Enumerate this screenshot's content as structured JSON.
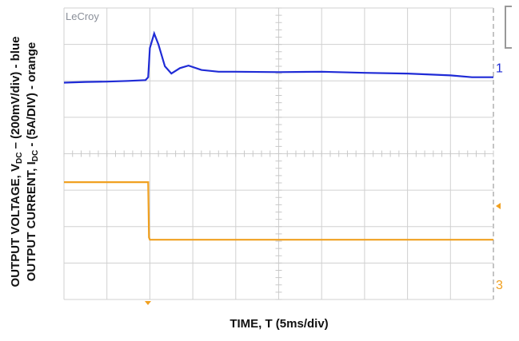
{
  "chart_data": {
    "type": "line",
    "brand": "LeCroy",
    "y_label": [
      [
        "OUTPUT VOLTAGE, V",
        "DC",
        " – (200mV/div) - blue"
      ],
      [
        "OUTPUT CURRENT, I",
        "DC",
        " - (5A/DIV) - orange"
      ]
    ],
    "x_label": "TIME, T (5ms/div)",
    "xlim": [
      0,
      10
    ],
    "ylim": [
      0,
      8
    ],
    "series": [
      {
        "name": "1",
        "color": "#1f2bd6",
        "x": [
          0,
          0.5,
          1,
          1.5,
          1.9,
          1.96,
          2.0,
          2.1,
          2.2,
          2.35,
          2.5,
          2.7,
          2.9,
          3.2,
          3.6,
          4,
          5,
          6,
          7,
          8,
          9,
          9.5,
          10
        ],
        "values": [
          5.95,
          5.97,
          5.98,
          6.0,
          6.02,
          6.1,
          6.9,
          7.3,
          7.0,
          6.4,
          6.2,
          6.35,
          6.42,
          6.3,
          6.25,
          6.25,
          6.24,
          6.25,
          6.22,
          6.2,
          6.15,
          6.1,
          6.1
        ]
      },
      {
        "name": "3",
        "color": "#f0a020",
        "x": [
          0,
          1.96,
          1.98,
          2.0,
          10
        ],
        "values": [
          3.22,
          3.22,
          1.7,
          1.64,
          1.64
        ]
      }
    ]
  }
}
